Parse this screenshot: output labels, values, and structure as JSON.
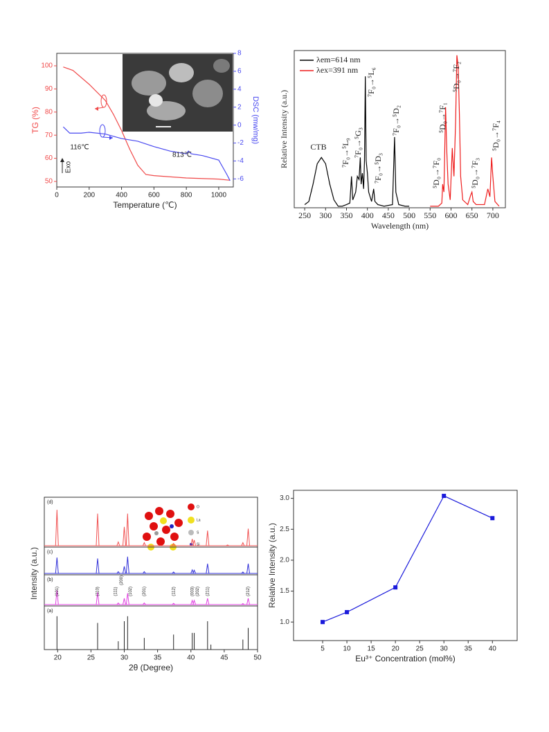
{
  "chart_data": [
    {
      "type": "line",
      "xlabel": "Temperature (℃)",
      "ylabel": "TG (%)",
      "y2label": "DSC (mw/mg)",
      "xlim": [
        0,
        1090
      ],
      "xticks": [
        0,
        200,
        400,
        600,
        800,
        1000
      ],
      "ylim": [
        47.6,
        105.4
      ],
      "yticks": [
        50,
        60,
        70,
        80,
        90,
        100
      ],
      "y2lim": [
        -6.9,
        8
      ],
      "y2ticks": [
        -6,
        -4,
        -2,
        0,
        2,
        4,
        6,
        8
      ],
      "series": [
        {
          "color": "#f04848",
          "x": [
            40,
            100,
            200,
            300,
            350,
            400,
            450,
            500,
            550,
            600,
            800,
            1000,
            1070
          ],
          "values": [
            99.5,
            98,
            92,
            85,
            79,
            72,
            64,
            57,
            53,
            52.5,
            51.5,
            51,
            50.5
          ]
        },
        {
          "color": "#4848f0",
          "axis": "y2",
          "x": [
            40,
            80,
            116,
            150,
            200,
            300,
            400,
            500,
            600,
            700,
            800,
            813,
            830,
            900,
            1000,
            1050,
            1070
          ],
          "values": [
            -0.2,
            -0.9,
            -0.9,
            -0.9,
            -0.8,
            -1.0,
            -1.5,
            -1.8,
            -2.4,
            -2.9,
            -3.2,
            -2.9,
            -3.2,
            -3.4,
            -3.9,
            -5.5,
            -6.2
          ]
        }
      ],
      "annotations": [
        "116℃",
        "813℃",
        "Exo"
      ]
    },
    {
      "type": "line",
      "xlabel": "Wavelength (nm)",
      "ylabel": "Relative Intensity (a.u.)",
      "xlim": [
        225,
        730
      ],
      "xticks": [
        250,
        300,
        350,
        400,
        450,
        500,
        550,
        600,
        650,
        700
      ],
      "ylim": [
        0,
        100
      ],
      "legend": "upper left",
      "series": [
        {
          "name": "λem=614 nm",
          "color": "#000000",
          "x": [
            250,
            260,
            270,
            280,
            290,
            300,
            310,
            320,
            330,
            340,
            350,
            358,
            362,
            365,
            372,
            376,
            380,
            383,
            385,
            388,
            391,
            393,
            395,
            397,
            400,
            403,
            410,
            415,
            418,
            425,
            440,
            460,
            465,
            468,
            475,
            490,
            500
          ],
          "values": [
            2,
            4,
            15,
            28,
            32,
            28,
            15,
            5,
            1,
            1,
            2,
            3,
            20,
            5,
            10,
            20,
            18,
            32,
            15,
            22,
            12,
            30,
            83.6,
            30,
            22,
            10,
            4,
            12,
            4,
            2,
            1,
            2,
            45,
            10,
            2,
            1,
            1
          ]
        },
        {
          "name": "λex=391 nm",
          "color": "#ee1c1c",
          "x": [
            550,
            570,
            578,
            580,
            583,
            587,
            590,
            593,
            598,
            603,
            607,
            611,
            614,
            617,
            620,
            623,
            628,
            640,
            647,
            650,
            653,
            660,
            680,
            688,
            693,
            697,
            700,
            705,
            715
          ],
          "values": [
            1,
            1,
            3,
            15,
            10,
            64,
            35,
            15,
            5,
            38,
            20,
            55,
            97,
            90,
            60,
            20,
            5,
            2,
            8,
            10,
            4,
            2,
            2,
            12,
            7,
            32,
            20,
            4,
            1
          ]
        }
      ],
      "annotations": [
        "CTB",
        "⁷F₀→⁵L₉",
        "⁷F₀→⁵G₃",
        "⁷F₀→⁵L₆",
        "⁷F₀→⁵D₃",
        "⁷F₀→⁵D₂",
        "⁵D₀→⁷F₀",
        "⁵D₀→⁷F₁",
        "⁵D₀→⁷F₂",
        "⁵D₀→⁷F₃",
        "⁵D₀→⁷F₄"
      ]
    },
    {
      "type": "stem",
      "xlabel": "2θ (Degree)",
      "ylabel": "Intensity (a.u.)",
      "xlim": [
        18,
        50
      ],
      "xticks": [
        20,
        25,
        30,
        35,
        40,
        45,
        50
      ],
      "ylim": [
        0,
        110
      ],
      "series": [
        {
          "name": "(d)",
          "color": "#f05050",
          "style": "peak",
          "x": [
            19.9,
            26.0,
            29.1,
            30.0,
            30.5,
            33.0,
            37.4,
            40.2,
            40.5,
            42.5,
            45.5,
            47.8,
            48.6
          ],
          "values": [
            95,
            85,
            10,
            50,
            85,
            8,
            6,
            18,
            15,
            40,
            2,
            8,
            45
          ]
        },
        {
          "name": "(c)",
          "color": "#3030d8",
          "style": "peak",
          "x": [
            19.9,
            26.0,
            29.1,
            30.0,
            30.5,
            33.0,
            37.4,
            40.2,
            40.5,
            42.5,
            47.8,
            48.6
          ],
          "values": [
            90,
            85,
            10,
            40,
            95,
            10,
            8,
            20,
            18,
            55,
            8,
            55
          ]
        },
        {
          "name": "(b)",
          "color": "#e040e0",
          "style": "peak",
          "x": [
            19.9,
            26.0,
            29.1,
            30.0,
            30.5,
            33.0,
            37.4,
            40.2,
            40.5,
            42.5,
            47.8,
            48.6
          ],
          "values": [
            70,
            60,
            8,
            30,
            55,
            8,
            6,
            20,
            20,
            30,
            5,
            30
          ]
        },
        {
          "name": "(a)",
          "color": "#222222",
          "style": "stick",
          "x": [
            19.9,
            26.0,
            29.1,
            30.0,
            30.5,
            33.0,
            37.4,
            40.2,
            40.5,
            42.5,
            43.0,
            47.8,
            48.6
          ],
          "values": [
            100,
            80,
            25,
            85,
            100,
            35,
            45,
            50,
            50,
            85,
            15,
            30,
            65
          ]
        }
      ],
      "peak_labels": [
        "(101)",
        "(110)",
        "(111)",
        "(200)",
        "(102)",
        "(201)",
        "(112)",
        "(003)",
        "(202)",
        "(211)",
        "(212)"
      ],
      "inset_legend": [
        "O",
        "La",
        "S",
        "Si"
      ]
    },
    {
      "type": "line",
      "xlabel": "Eu³⁺ Concentration (mol%)",
      "ylabel": "Relative Intensity (a.u.)",
      "xlim": [
        -1,
        45.1
      ],
      "xticks": [
        5,
        10,
        15,
        20,
        25,
        30,
        35,
        40
      ],
      "ylim": [
        0.7,
        3.13
      ],
      "yticks": [
        {
          "value": 1,
          "label": "1.0"
        },
        1.5,
        {
          "value": 2,
          "label": "2.0"
        },
        2.5,
        {
          "value": 3,
          "label": "3.0"
        }
      ],
      "markers": true,
      "series": [
        {
          "color": "#1a1adb",
          "x": [
            5,
            10,
            20,
            30,
            40
          ],
          "values": [
            1.0,
            1.16,
            1.56,
            3.04,
            2.68
          ]
        }
      ]
    }
  ]
}
